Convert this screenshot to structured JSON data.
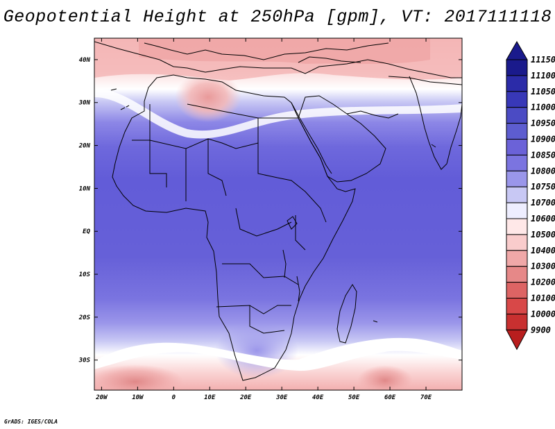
{
  "title": "Geopotential Height at 250hPa [gpm], VT: 2017111118",
  "lat_labels": [
    "40N",
    "30N",
    "20N",
    "10N",
    "EQ",
    "10S",
    "20S",
    "30S"
  ],
  "lon_labels": [
    "20W",
    "10W",
    "0",
    "10E",
    "20E",
    "30E",
    "40E",
    "50E",
    "60E",
    "70E"
  ],
  "colorbar": {
    "levels": [
      "11150",
      "11100",
      "11050",
      "11000",
      "10950",
      "10900",
      "10850",
      "10800",
      "10750",
      "10700",
      "10600",
      "10500",
      "10400",
      "10300",
      "10200",
      "10100",
      "10000",
      "9900"
    ],
    "colors": [
      "#1a1a8c",
      "#2b2ba8",
      "#3838b8",
      "#4b4bc4",
      "#5d5dd0",
      "#6b62d8",
      "#7b74e0",
      "#9a96ea",
      "#c8c8f4",
      "#eeeeff",
      "#ffe8e8",
      "#f9cccc",
      "#f0a8a8",
      "#e68888",
      "#dd6464",
      "#d84848",
      "#c83030",
      "#b81e1e"
    ]
  },
  "credit": "GrADS: IGES/COLA",
  "chart_data": {
    "type": "heatmap",
    "title": "Geopotential Height at 250hPa [gpm], VT: 2017111118",
    "variable": "Geopotential Height",
    "level": "250hPa",
    "units": "gpm",
    "valid_time": "2017111118",
    "xlim": [
      -22,
      80
    ],
    "ylim": [
      -37,
      45
    ],
    "contour_levels": [
      9900,
      10000,
      10100,
      10200,
      10300,
      10400,
      10500,
      10600,
      10700,
      10750,
      10800,
      10850,
      10900,
      10950,
      11000,
      11050,
      11100,
      11150
    ]
  }
}
